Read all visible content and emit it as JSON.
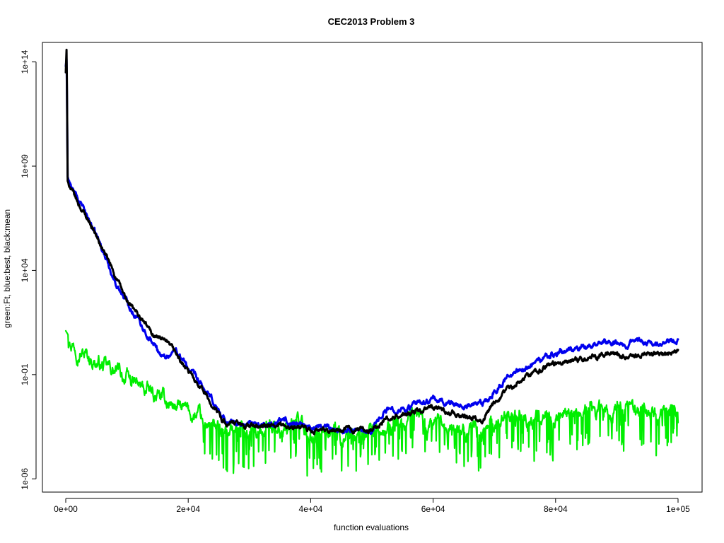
{
  "chart_data": {
    "type": "line",
    "title": "CEC2013 Problem  3",
    "xlabel": "function evaluations",
    "ylabel": "green:Ft, blue:best, black:mean",
    "y_scale": "log10",
    "xlim": [
      0,
      100000
    ],
    "ylim_log10": [
      -6.5,
      14.8
    ],
    "grid": false,
    "legend": "none",
    "x_ticks": [
      {
        "value": 0,
        "label": "0e+00"
      },
      {
        "value": 20000,
        "label": "2e+04"
      },
      {
        "value": 40000,
        "label": "4e+04"
      },
      {
        "value": 60000,
        "label": "6e+04"
      },
      {
        "value": 80000,
        "label": "8e+04"
      },
      {
        "value": 100000,
        "label": "1e+05"
      }
    ],
    "y_ticks": [
      {
        "log10": -6,
        "label": "1e-06"
      },
      {
        "log10": -1,
        "label": "1e-01"
      },
      {
        "log10": 4,
        "label": "1e+04"
      },
      {
        "log10": 9,
        "label": "1e+09"
      },
      {
        "log10": 14,
        "label": "1e+14"
      }
    ],
    "series": [
      {
        "key": "ft",
        "color": "#00ee00",
        "noise": 0.9,
        "points": [
          [
            0,
            1.1
          ],
          [
            1000,
            0.6
          ],
          [
            3000,
            0.0
          ],
          [
            6000,
            -0.6
          ],
          [
            9000,
            -1.0
          ],
          [
            12000,
            -1.6
          ],
          [
            15000,
            -2.1
          ],
          [
            18000,
            -2.5
          ],
          [
            21000,
            -3.0
          ],
          [
            24000,
            -3.4
          ],
          [
            28000,
            -3.6
          ],
          [
            32000,
            -3.5
          ],
          [
            36000,
            -3.6
          ],
          [
            40000,
            -3.8
          ],
          [
            44000,
            -3.9
          ],
          [
            48000,
            -4.1
          ],
          [
            50000,
            -4.0
          ],
          [
            52000,
            -3.6
          ],
          [
            56000,
            -3.4
          ],
          [
            60000,
            -3.3
          ],
          [
            64000,
            -3.6
          ],
          [
            68000,
            -3.8
          ],
          [
            72000,
            -3.1
          ],
          [
            76000,
            -3.2
          ],
          [
            80000,
            -2.8
          ],
          [
            84000,
            -2.7
          ],
          [
            88000,
            -2.9
          ],
          [
            92000,
            -2.8
          ],
          [
            96000,
            -3.0
          ],
          [
            100000,
            -2.8
          ]
        ]
      },
      {
        "key": "best",
        "color": "#0000ee",
        "noise": 0.35,
        "points": [
          [
            0,
            13.8
          ],
          [
            150,
            14.2
          ],
          [
            300,
            8.5
          ],
          [
            1000,
            7.9
          ],
          [
            2000,
            7.4
          ],
          [
            4000,
            6.3
          ],
          [
            6000,
            5.0
          ],
          [
            8000,
            3.5
          ],
          [
            10000,
            2.5
          ],
          [
            12000,
            1.6
          ],
          [
            14000,
            0.6
          ],
          [
            16000,
            -0.2
          ],
          [
            18000,
            0.2
          ],
          [
            20000,
            -0.7
          ],
          [
            22000,
            -1.5
          ],
          [
            24000,
            -2.3
          ],
          [
            26000,
            -3.2
          ],
          [
            28000,
            -3.4
          ],
          [
            32000,
            -3.4
          ],
          [
            36000,
            -3.2
          ],
          [
            40000,
            -3.5
          ],
          [
            44000,
            -3.6
          ],
          [
            48000,
            -3.7
          ],
          [
            50000,
            -3.6
          ],
          [
            52000,
            -2.7
          ],
          [
            56000,
            -2.6
          ],
          [
            60000,
            -2.2
          ],
          [
            64000,
            -2.4
          ],
          [
            68000,
            -2.5
          ],
          [
            72000,
            -1.2
          ],
          [
            76000,
            -0.5
          ],
          [
            80000,
            0.0
          ],
          [
            84000,
            0.3
          ],
          [
            88000,
            0.6
          ],
          [
            92000,
            0.5
          ],
          [
            96000,
            0.6
          ],
          [
            100000,
            0.7
          ]
        ]
      },
      {
        "key": "mean",
        "color": "#000000",
        "noise": 0.3,
        "points": [
          [
            0,
            13.5
          ],
          [
            150,
            14.8
          ],
          [
            300,
            8.3
          ],
          [
            1000,
            7.8
          ],
          [
            2000,
            7.2
          ],
          [
            4000,
            6.3
          ],
          [
            6000,
            5.0
          ],
          [
            8000,
            3.8
          ],
          [
            10000,
            2.5
          ],
          [
            12000,
            1.8
          ],
          [
            14000,
            1.0
          ],
          [
            16000,
            0.6
          ],
          [
            18000,
            0.0
          ],
          [
            20000,
            -0.9
          ],
          [
            22000,
            -1.5
          ],
          [
            24000,
            -2.5
          ],
          [
            26000,
            -3.3
          ],
          [
            28000,
            -3.4
          ],
          [
            32000,
            -3.5
          ],
          [
            36000,
            -3.5
          ],
          [
            40000,
            -3.7
          ],
          [
            44000,
            -3.7
          ],
          [
            48000,
            -3.6
          ],
          [
            50000,
            -3.7
          ],
          [
            52000,
            -3.2
          ],
          [
            56000,
            -2.9
          ],
          [
            60000,
            -2.6
          ],
          [
            64000,
            -2.9
          ],
          [
            68000,
            -3.1
          ],
          [
            72000,
            -1.8
          ],
          [
            76000,
            -0.9
          ],
          [
            80000,
            -0.5
          ],
          [
            84000,
            -0.2
          ],
          [
            88000,
            0.0
          ],
          [
            92000,
            -0.1
          ],
          [
            96000,
            0.0
          ],
          [
            100000,
            0.2
          ]
        ]
      }
    ]
  }
}
